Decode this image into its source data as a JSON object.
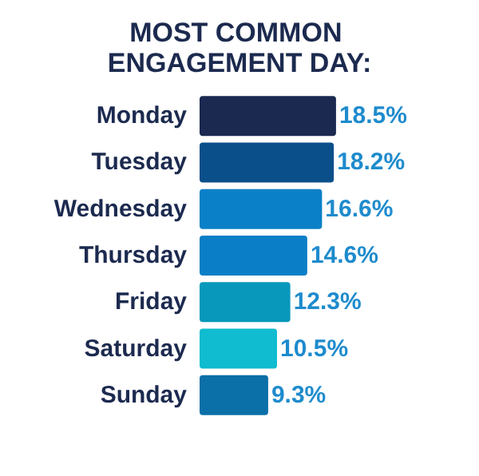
{
  "chart_data": {
    "type": "bar",
    "orientation": "horizontal",
    "title": "MOST COMMON ENGAGEMENT DAY:",
    "categories": [
      "Monday",
      "Tuesday",
      "Wednesday",
      "Thursday",
      "Friday",
      "Saturday",
      "Sunday"
    ],
    "values": [
      18.5,
      18.2,
      16.6,
      14.6,
      12.3,
      10.5,
      9.3
    ],
    "colors": [
      "#1b2850",
      "#0b4f8a",
      "#0a80c8",
      "#0a7fc8",
      "#0898bc",
      "#10bcd0",
      "#0b6fa8"
    ],
    "value_labels": [
      "18.5%",
      "18.2%",
      "16.6%",
      "14.6%",
      "12.3%",
      "10.5%",
      "9.3%"
    ],
    "grid": false
  }
}
